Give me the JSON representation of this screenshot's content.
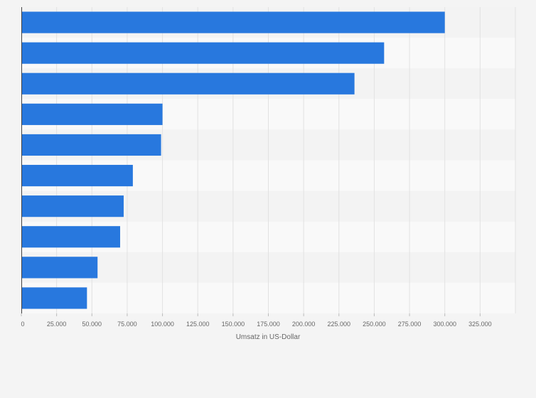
{
  "chart_data": {
    "type": "bar",
    "orientation": "horizontal",
    "title": "",
    "xlabel": "Umsatz in US-Dollar",
    "ylabel": "",
    "xlim": [
      0,
      350000
    ],
    "x_ticks": [
      0,
      25000,
      50000,
      75000,
      100000,
      125000,
      150000,
      175000,
      200000,
      225000,
      250000,
      275000,
      300000,
      325000
    ],
    "x_tick_labels": [
      "0",
      "25.000",
      "50.000",
      "75.000",
      "100.000",
      "125.000",
      "150.000",
      "175.000",
      "200.000",
      "225.000",
      "250.000",
      "275.000",
      "300.000",
      "325.000"
    ],
    "categories": [
      "",
      "",
      "",
      "",
      "",
      "",
      "",
      "",
      "",
      ""
    ],
    "values": [
      300000,
      257000,
      236000,
      100000,
      99000,
      79000,
      72500,
      70000,
      54000,
      46500
    ],
    "grid": true,
    "legend": "none",
    "colors": {
      "bar": "#2878de",
      "band_light": "#f9f9f9",
      "band_dark": "#f3f3f3",
      "grid": "#e2e2e2",
      "axis": "#444444",
      "page": "#f4f4f4"
    }
  }
}
